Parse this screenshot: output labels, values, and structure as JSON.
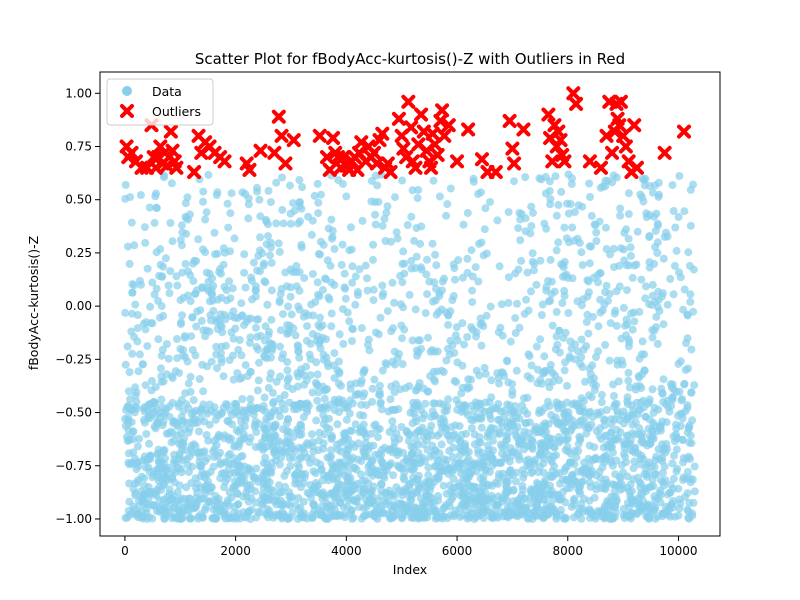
{
  "chart_data": {
    "type": "scatter",
    "title": "Scatter Plot for fBodyAcc-kurtosis()-Z with Outliers in Red",
    "xlabel": "Index",
    "ylabel": "fBodyAcc-kurtosis()-Z",
    "xlim": [
      -450,
      10750
    ],
    "ylim": [
      -1.08,
      1.1
    ],
    "x_ticks": [
      0,
      2000,
      4000,
      6000,
      8000,
      10000
    ],
    "x_tick_labels": [
      "0",
      "2000",
      "4000",
      "6000",
      "8000",
      "10000"
    ],
    "y_ticks": [
      -1.0,
      -0.75,
      -0.5,
      -0.25,
      0.0,
      0.25,
      0.5,
      0.75,
      1.0
    ],
    "y_tick_labels": [
      "−1.00",
      "−0.75",
      "−0.50",
      "−0.25",
      "0.00",
      "0.25",
      "0.50",
      "0.75",
      "1.00"
    ],
    "grid": false,
    "legend_position": "top-left",
    "series": [
      {
        "name": "Data",
        "marker": "circle",
        "color": "#87ceeb",
        "n_points": 10299,
        "x_range": [
          0,
          10298
        ],
        "y_range": [
          -1.0,
          0.62
        ],
        "note": "dense cloud concentrated between -1.0 and -0.5, thinning toward 0.6"
      },
      {
        "name": "Outliers",
        "marker": "x",
        "color": "#ff0000",
        "points": [
          [
            30,
            0.75
          ],
          [
            60,
            0.7
          ],
          [
            120,
            0.72
          ],
          [
            200,
            0.68
          ],
          [
            300,
            0.65
          ],
          [
            400,
            0.65
          ],
          [
            480,
            0.85
          ],
          [
            520,
            0.7
          ],
          [
            560,
            0.65
          ],
          [
            600,
            0.7
          ],
          [
            640,
            0.75
          ],
          [
            680,
            0.67
          ],
          [
            720,
            0.72
          ],
          [
            760,
            0.66
          ],
          [
            800,
            0.7
          ],
          [
            830,
            0.82
          ],
          [
            860,
            0.73
          ],
          [
            900,
            0.68
          ],
          [
            930,
            0.65
          ],
          [
            1250,
            0.63
          ],
          [
            1330,
            0.8
          ],
          [
            1380,
            0.72
          ],
          [
            1450,
            0.77
          ],
          [
            1530,
            0.75
          ],
          [
            1620,
            0.72
          ],
          [
            1720,
            0.7
          ],
          [
            1800,
            0.68
          ],
          [
            2200,
            0.67
          ],
          [
            2250,
            0.64
          ],
          [
            2450,
            0.73
          ],
          [
            2700,
            0.72
          ],
          [
            2780,
            0.89
          ],
          [
            2830,
            0.8
          ],
          [
            2900,
            0.67
          ],
          [
            3050,
            0.78
          ],
          [
            3520,
            0.8
          ],
          [
            3650,
            0.7
          ],
          [
            3700,
            0.64
          ],
          [
            3760,
            0.79
          ],
          [
            3800,
            0.72
          ],
          [
            3850,
            0.7
          ],
          [
            3900,
            0.65
          ],
          [
            3950,
            0.7
          ],
          [
            4000,
            0.66
          ],
          [
            4050,
            0.64
          ],
          [
            4100,
            0.68
          ],
          [
            4150,
            0.7
          ],
          [
            4200,
            0.64
          ],
          [
            4230,
            0.72
          ],
          [
            4270,
            0.77
          ],
          [
            4350,
            0.68
          ],
          [
            4400,
            0.75
          ],
          [
            4450,
            0.7
          ],
          [
            4500,
            0.72
          ],
          [
            4550,
            0.67
          ],
          [
            4600,
            0.78
          ],
          [
            4650,
            0.81
          ],
          [
            4700,
            0.65
          ],
          [
            4750,
            0.67
          ],
          [
            4800,
            0.63
          ],
          [
            4950,
            0.88
          ],
          [
            5000,
            0.8
          ],
          [
            5030,
            0.74
          ],
          [
            5080,
            0.7
          ],
          [
            5120,
            0.96
          ],
          [
            5170,
            0.84
          ],
          [
            5200,
            0.68
          ],
          [
            5250,
            0.65
          ],
          [
            5300,
            0.76
          ],
          [
            5350,
            0.9
          ],
          [
            5400,
            0.82
          ],
          [
            5450,
            0.73
          ],
          [
            5500,
            0.68
          ],
          [
            5530,
            0.65
          ],
          [
            5560,
            0.81
          ],
          [
            5600,
            0.76
          ],
          [
            5650,
            0.71
          ],
          [
            5700,
            0.87
          ],
          [
            5730,
            0.92
          ],
          [
            5770,
            0.8
          ],
          [
            5850,
            0.85
          ],
          [
            6000,
            0.68
          ],
          [
            6200,
            0.83
          ],
          [
            6450,
            0.69
          ],
          [
            6550,
            0.63
          ],
          [
            6700,
            0.63
          ],
          [
            6950,
            0.87
          ],
          [
            7000,
            0.74
          ],
          [
            7030,
            0.67
          ],
          [
            7200,
            0.83
          ],
          [
            7650,
            0.9
          ],
          [
            7680,
            0.79
          ],
          [
            7720,
            0.68
          ],
          [
            7760,
            0.85
          ],
          [
            7800,
            0.75
          ],
          [
            7830,
            0.82
          ],
          [
            7870,
            0.78
          ],
          [
            7900,
            0.71
          ],
          [
            7940,
            0.68
          ],
          [
            8100,
            1.0
          ],
          [
            8150,
            0.95
          ],
          [
            8400,
            0.68
          ],
          [
            8600,
            0.65
          ],
          [
            8700,
            0.8
          ],
          [
            8750,
            0.96
          ],
          [
            8800,
            0.72
          ],
          [
            8850,
            0.82
          ],
          [
            8880,
            0.95
          ],
          [
            8900,
            0.88
          ],
          [
            8930,
            0.85
          ],
          [
            8960,
            0.96
          ],
          [
            9000,
            0.8
          ],
          [
            9050,
            0.75
          ],
          [
            9100,
            0.68
          ],
          [
            9150,
            0.63
          ],
          [
            9200,
            0.85
          ],
          [
            9250,
            0.65
          ],
          [
            9750,
            0.72
          ],
          [
            10100,
            0.82
          ]
        ]
      }
    ]
  }
}
